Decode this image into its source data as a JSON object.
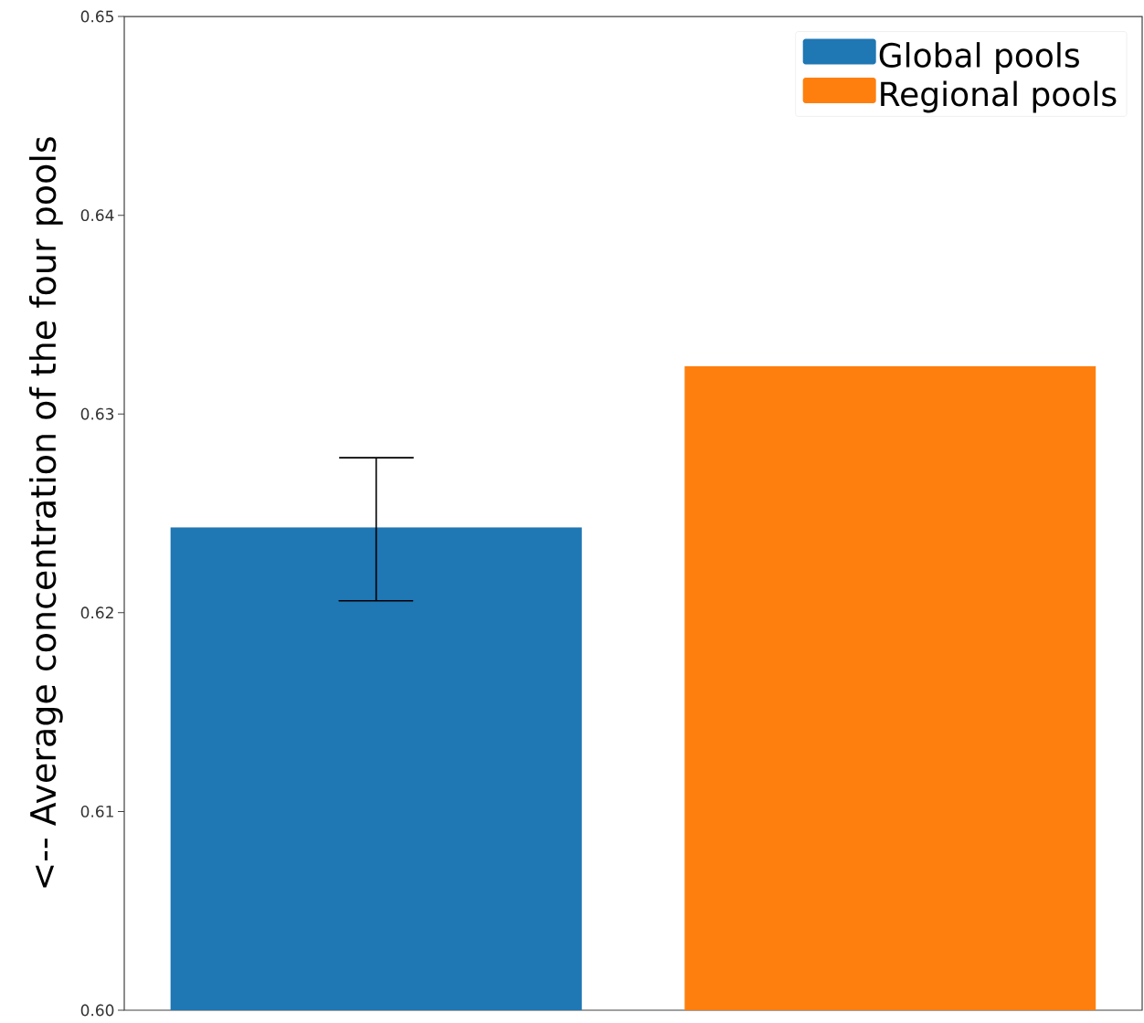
{
  "chart_data": {
    "type": "bar",
    "ylabel": "<-- Average concentration of the four pools",
    "categories": [
      null,
      null
    ],
    "series": [
      {
        "name": "Global pools",
        "color": "#1f77b4",
        "values": [
          0.6243,
          null
        ],
        "errors": [
          [
            0.6206,
            0.6278
          ],
          null
        ]
      },
      {
        "name": "Regional pools",
        "color": "#ff7f0e",
        "values": [
          null,
          0.6324
        ]
      }
    ],
    "ylim": [
      0.6,
      0.65
    ],
    "yticks": [
      {
        "value": 0.6,
        "label": "0.60"
      },
      {
        "value": 0.61,
        "label": "0.61"
      },
      {
        "value": 0.62,
        "label": "0.62"
      },
      {
        "value": 0.63,
        "label": "0.63"
      },
      {
        "value": 0.64,
        "label": "0.64"
      },
      {
        "value": 0.65,
        "label": "0.65"
      }
    ],
    "stacked": true,
    "legend": "top right"
  }
}
